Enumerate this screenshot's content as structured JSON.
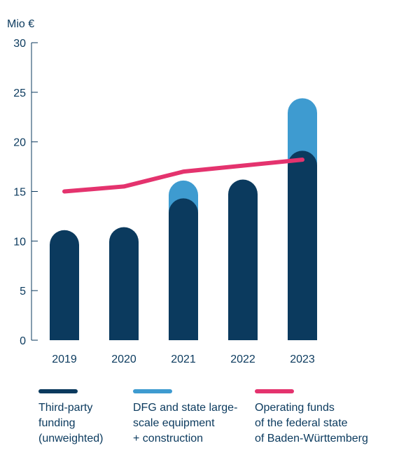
{
  "chart_data": {
    "type": "bar",
    "unit_label": "Mio €",
    "categories": [
      "2019",
      "2020",
      "2021",
      "2022",
      "2023"
    ],
    "y_ticks": [
      "0",
      "5",
      "10",
      "15",
      "20",
      "25",
      "30"
    ],
    "ylim": [
      0,
      30
    ],
    "stacked": true,
    "grid": false,
    "legend_position": "bottom",
    "series": [
      {
        "name": "Third-party funding (unweighted)",
        "type": "bar",
        "color": "#0b3a5e",
        "values": [
          11.1,
          11.4,
          14.3,
          16.2,
          19.1
        ]
      },
      {
        "name": "DFG and state large-scale equipment + construction",
        "type": "bar",
        "color": "#3e9bd0",
        "values": [
          0,
          0,
          1.8,
          0,
          5.3
        ]
      },
      {
        "name": "Operating funds of the federal state of Baden-Württemberg",
        "type": "line",
        "color": "#e4336e",
        "values": [
          15.0,
          15.5,
          17.0,
          17.6,
          18.2
        ]
      }
    ]
  },
  "legend": [
    {
      "label": "Third-party\nfunding\n(unweighted)",
      "color": "#0b3a5e"
    },
    {
      "label": "DFG and state large-\nscale equipment\n+ construction",
      "color": "#3e9bd0"
    },
    {
      "label": "Operating funds\nof the federal state\nof Baden-Württemberg",
      "color": "#e4336e"
    }
  ]
}
